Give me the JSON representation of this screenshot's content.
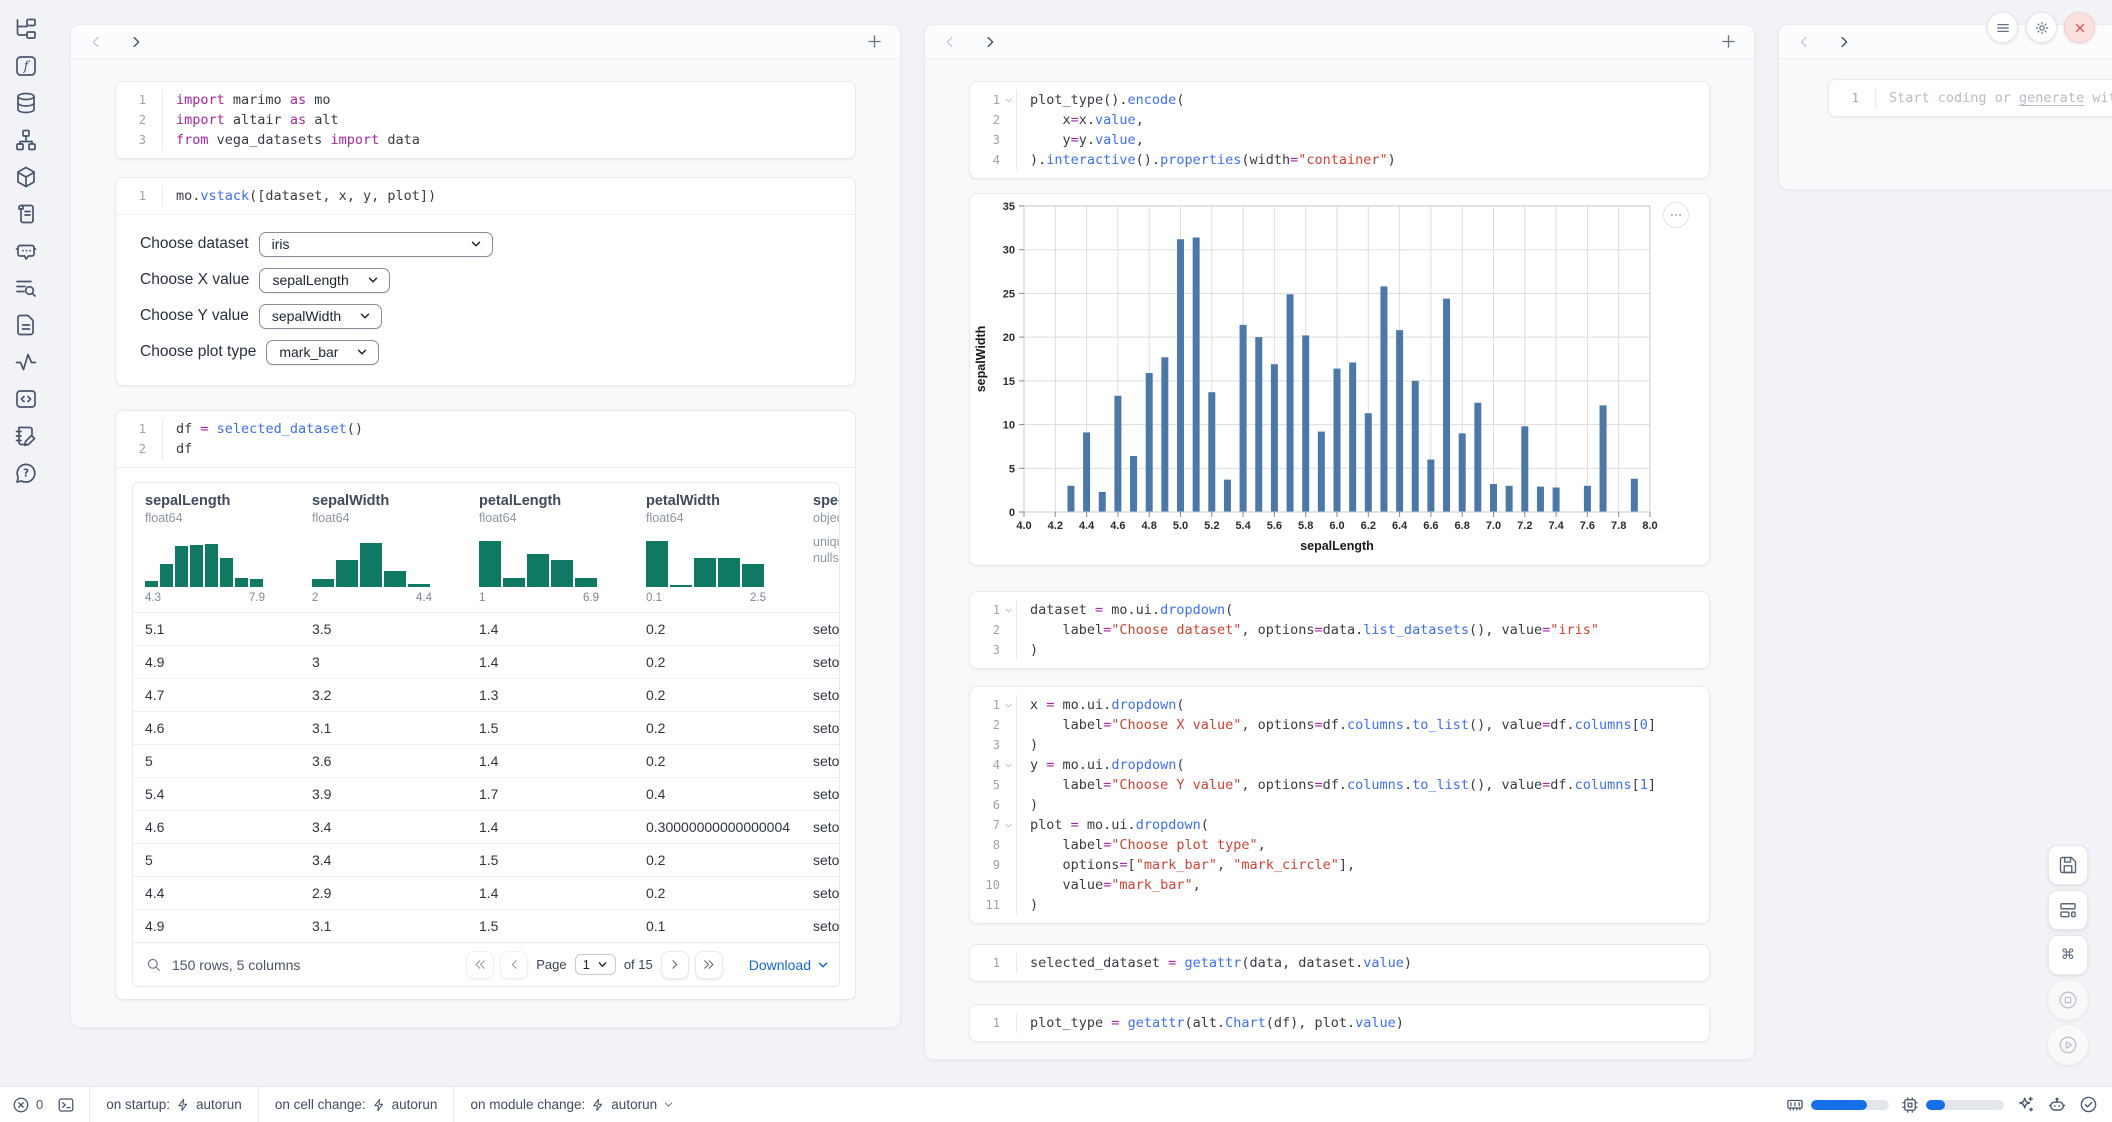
{
  "colors": {
    "accent_blue": "#1467d2",
    "bar_color": "#4c78a8",
    "hist_color": "#0f7963",
    "close_red": "#dd4b4e",
    "progress_blue": "#1570e8"
  },
  "sidebar": {
    "icons": [
      "file-tree",
      "function",
      "database",
      "hierarchy",
      "package",
      "scroll",
      "chat-bot",
      "search-list",
      "document",
      "activity",
      "code-block",
      "notebook-pen",
      "help-circle"
    ]
  },
  "top_right_buttons": [
    "menu",
    "gear",
    "close"
  ],
  "panels": {
    "left": {
      "cells": [
        {
          "folds": [],
          "lines": [
            [
              [
                "k",
                "import"
              ],
              [
                "t",
                " marimo "
              ],
              [
                "k",
                "as"
              ],
              [
                "t",
                " mo"
              ]
            ],
            [
              [
                "k",
                "import"
              ],
              [
                "t",
                " altair "
              ],
              [
                "k",
                "as"
              ],
              [
                "t",
                " alt"
              ]
            ],
            [
              [
                "k",
                "from"
              ],
              [
                "t",
                " vega_datasets "
              ],
              [
                "k",
                "import"
              ],
              [
                "t",
                " data"
              ]
            ]
          ]
        },
        {
          "folds": [],
          "lines": [
            [
              [
                "t",
                "mo."
              ],
              [
                "f",
                "vstack"
              ],
              [
                "t",
                "([dataset, x, y, plot])"
              ]
            ]
          ]
        },
        {
          "folds": [],
          "lines": [
            [
              [
                "t",
                "df "
              ],
              [
                "o",
                "="
              ],
              [
                "t",
                " "
              ],
              [
                "f",
                "selected_dataset"
              ],
              [
                "t",
                "()"
              ]
            ],
            [
              [
                "t",
                "df"
              ]
            ]
          ]
        }
      ],
      "controls": [
        {
          "label": "Choose dataset",
          "value": "iris",
          "wide": true
        },
        {
          "label": "Choose X value",
          "value": "sepalLength"
        },
        {
          "label": "Choose Y value",
          "value": "sepalWidth"
        },
        {
          "label": "Choose plot type",
          "value": "mark_bar"
        }
      ],
      "table": {
        "columns": [
          {
            "name": "sepalLength",
            "dtype": "float64",
            "min": "4.3",
            "max": "7.9",
            "hist": [
              0.12,
              0.45,
              0.78,
              0.8,
              0.83,
              0.55,
              0.17,
              0.15
            ]
          },
          {
            "name": "sepalWidth",
            "dtype": "float64",
            "min": "2",
            "max": "4.4",
            "hist": [
              0.15,
              0.52,
              0.85,
              0.3,
              0.06
            ]
          },
          {
            "name": "petalLength",
            "dtype": "float64",
            "min": "1",
            "max": "6.9",
            "hist": [
              0.88,
              0.18,
              0.64,
              0.52,
              0.18
            ]
          },
          {
            "name": "petalWidth",
            "dtype": "float64",
            "min": "0.1",
            "max": "2.5",
            "hist": [
              0.88,
              0.04,
              0.56,
              0.55,
              0.44
            ]
          },
          {
            "name": "species",
            "dtype": "object",
            "meta": [
              "unique:",
              "nulls:"
            ]
          }
        ],
        "rows": [
          [
            "5.1",
            "3.5",
            "1.4",
            "0.2",
            "setosa"
          ],
          [
            "4.9",
            "3",
            "1.4",
            "0.2",
            "setosa"
          ],
          [
            "4.7",
            "3.2",
            "1.3",
            "0.2",
            "setosa"
          ],
          [
            "4.6",
            "3.1",
            "1.5",
            "0.2",
            "setosa"
          ],
          [
            "5",
            "3.6",
            "1.4",
            "0.2",
            "setosa"
          ],
          [
            "5.4",
            "3.9",
            "1.7",
            "0.4",
            "setosa"
          ],
          [
            "4.6",
            "3.4",
            "1.4",
            "0.30000000000000004",
            "setosa"
          ],
          [
            "5",
            "3.4",
            "1.5",
            "0.2",
            "setosa"
          ],
          [
            "4.4",
            "2.9",
            "1.4",
            "0.2",
            "setosa"
          ],
          [
            "4.9",
            "3.1",
            "1.5",
            "0.1",
            "setosa"
          ]
        ],
        "footer": {
          "row_summary": "150 rows, 5 columns",
          "page_label": "Page",
          "page_value": "1",
          "of_text": "of 15",
          "download": "Download"
        }
      }
    },
    "middle": {
      "cells": [
        {
          "folds": [
            1
          ],
          "lines": [
            [
              [
                "t",
                "plot_type()."
              ],
              [
                "f",
                "encode"
              ],
              [
                "t",
                "("
              ]
            ],
            [
              [
                "t",
                "    x"
              ],
              [
                "o",
                "="
              ],
              [
                "t",
                "x."
              ],
              [
                "f",
                "value"
              ],
              [
                "t",
                ","
              ]
            ],
            [
              [
                "t",
                "    y"
              ],
              [
                "o",
                "="
              ],
              [
                "t",
                "y."
              ],
              [
                "f",
                "value"
              ],
              [
                "t",
                ","
              ]
            ],
            [
              [
                "t",
                ")."
              ],
              [
                "f",
                "interactive"
              ],
              [
                "t",
                "()."
              ],
              [
                "f",
                "properties"
              ],
              [
                "t",
                "(width"
              ],
              [
                "o",
                "="
              ],
              [
                "s",
                "\"container\""
              ],
              [
                "t",
                ")"
              ]
            ]
          ]
        },
        {
          "folds": [
            1
          ],
          "lines": [
            [
              [
                "t",
                "dataset "
              ],
              [
                "o",
                "="
              ],
              [
                "t",
                " mo.ui."
              ],
              [
                "f",
                "dropdown"
              ],
              [
                "t",
                "("
              ]
            ],
            [
              [
                "t",
                "    label"
              ],
              [
                "o",
                "="
              ],
              [
                "s",
                "\"Choose dataset\""
              ],
              [
                "t",
                ", options"
              ],
              [
                "o",
                "="
              ],
              [
                "t",
                "data."
              ],
              [
                "f",
                "list_datasets"
              ],
              [
                "t",
                "(), value"
              ],
              [
                "o",
                "="
              ],
              [
                "s",
                "\"iris\""
              ]
            ],
            [
              [
                "t",
                ")"
              ]
            ]
          ]
        },
        {
          "folds": [
            1,
            4,
            7
          ],
          "lines": [
            [
              [
                "t",
                "x "
              ],
              [
                "o",
                "="
              ],
              [
                "t",
                " mo.ui."
              ],
              [
                "f",
                "dropdown"
              ],
              [
                "t",
                "("
              ]
            ],
            [
              [
                "t",
                "    label"
              ],
              [
                "o",
                "="
              ],
              [
                "s",
                "\"Choose X value\""
              ],
              [
                "t",
                ", options"
              ],
              [
                "o",
                "="
              ],
              [
                "t",
                "df."
              ],
              [
                "f",
                "columns"
              ],
              [
                "t",
                "."
              ],
              [
                "f",
                "to_list"
              ],
              [
                "t",
                "(), value"
              ],
              [
                "o",
                "="
              ],
              [
                "t",
                "df."
              ],
              [
                "f",
                "columns"
              ],
              [
                "t",
                "["
              ],
              [
                "n",
                "0"
              ],
              [
                "t",
                "]"
              ]
            ],
            [
              [
                "t",
                ")"
              ]
            ],
            [
              [
                "t",
                "y "
              ],
              [
                "o",
                "="
              ],
              [
                "t",
                " mo.ui."
              ],
              [
                "f",
                "dropdown"
              ],
              [
                "t",
                "("
              ]
            ],
            [
              [
                "t",
                "    label"
              ],
              [
                "o",
                "="
              ],
              [
                "s",
                "\"Choose Y value\""
              ],
              [
                "t",
                ", options"
              ],
              [
                "o",
                "="
              ],
              [
                "t",
                "df."
              ],
              [
                "f",
                "columns"
              ],
              [
                "t",
                "."
              ],
              [
                "f",
                "to_list"
              ],
              [
                "t",
                "(), value"
              ],
              [
                "o",
                "="
              ],
              [
                "t",
                "df."
              ],
              [
                "f",
                "columns"
              ],
              [
                "t",
                "["
              ],
              [
                "n",
                "1"
              ],
              [
                "t",
                "]"
              ]
            ],
            [
              [
                "t",
                ")"
              ]
            ],
            [
              [
                "t",
                "plot "
              ],
              [
                "o",
                "="
              ],
              [
                "t",
                " mo.ui."
              ],
              [
                "f",
                "dropdown"
              ],
              [
                "t",
                "("
              ]
            ],
            [
              [
                "t",
                "    label"
              ],
              [
                "o",
                "="
              ],
              [
                "s",
                "\"Choose plot type\""
              ],
              [
                "t",
                ","
              ]
            ],
            [
              [
                "t",
                "    options"
              ],
              [
                "o",
                "="
              ],
              [
                "t",
                "["
              ],
              [
                "s",
                "\"mark_bar\""
              ],
              [
                "t",
                ", "
              ],
              [
                "s",
                "\"mark_circle\""
              ],
              [
                "t",
                "],"
              ]
            ],
            [
              [
                "t",
                "    value"
              ],
              [
                "o",
                "="
              ],
              [
                "s",
                "\"mark_bar\""
              ],
              [
                "t",
                ","
              ]
            ],
            [
              [
                "t",
                ")"
              ]
            ]
          ]
        },
        {
          "folds": [],
          "lines": [
            [
              [
                "t",
                "selected_dataset "
              ],
              [
                "o",
                "="
              ],
              [
                "t",
                " "
              ],
              [
                "f",
                "getattr"
              ],
              [
                "t",
                "(data, dataset."
              ],
              [
                "f",
                "value"
              ],
              [
                "t",
                ")"
              ]
            ]
          ]
        },
        {
          "folds": [],
          "lines": [
            [
              [
                "t",
                "plot_type "
              ],
              [
                "o",
                "="
              ],
              [
                "t",
                " "
              ],
              [
                "f",
                "getattr"
              ],
              [
                "t",
                "(alt."
              ],
              [
                "f",
                "Chart"
              ],
              [
                "t",
                "(df), plot."
              ],
              [
                "f",
                "value"
              ],
              [
                "t",
                ")"
              ]
            ]
          ]
        }
      ]
    },
    "right": {
      "line_number": "1",
      "placeholder_prefix": "Start coding or ",
      "placeholder_generate": "generate",
      "placeholder_suffix": " with"
    }
  },
  "chart_data": {
    "type": "bar",
    "xlabel": "sepalLength",
    "ylabel": "sepalWidth",
    "xlim": [
      4.0,
      8.0
    ],
    "ylim": [
      0,
      35
    ],
    "x_tick_step": 0.2,
    "y_ticks": [
      0,
      5,
      10,
      15,
      20,
      25,
      30,
      35
    ],
    "grid": true,
    "bar_color": "#4c78a8",
    "x": [
      4.3,
      4.4,
      4.5,
      4.6,
      4.7,
      4.8,
      4.9,
      5.0,
      5.1,
      5.2,
      5.3,
      5.4,
      5.5,
      5.6,
      5.7,
      5.8,
      5.9,
      6.0,
      6.1,
      6.2,
      6.3,
      6.4,
      6.5,
      6.6,
      6.7,
      6.8,
      6.9,
      7.0,
      7.1,
      7.2,
      7.3,
      7.4,
      7.6,
      7.7,
      7.9
    ],
    "values": [
      3.0,
      9.1,
      2.3,
      13.3,
      6.4,
      15.9,
      17.7,
      31.2,
      31.4,
      13.7,
      3.7,
      21.4,
      20.0,
      16.9,
      24.9,
      20.2,
      9.2,
      16.4,
      17.1,
      11.3,
      25.8,
      20.8,
      15.0,
      6.0,
      24.4,
      9.0,
      12.5,
      3.2,
      3.0,
      9.8,
      2.9,
      2.8,
      3.0,
      12.2,
      3.8
    ]
  },
  "status_bar": {
    "error_count": "0",
    "groups": [
      {
        "label": "on startup:",
        "value": "autorun",
        "chevron": false
      },
      {
        "label": "on cell change:",
        "value": "autorun",
        "chevron": false
      },
      {
        "label": "on module change:",
        "value": "autorun",
        "chevron": true
      }
    ],
    "ram_fill": 0.72,
    "cpu_fill": 0.24
  }
}
